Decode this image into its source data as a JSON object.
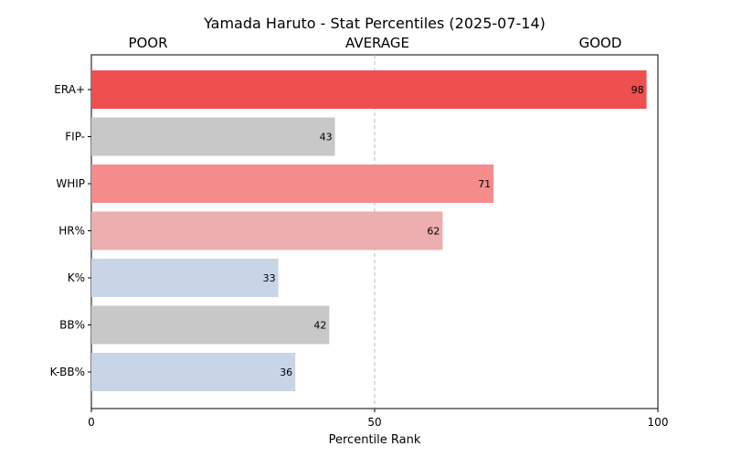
{
  "chart_data": {
    "type": "bar",
    "orientation": "horizontal",
    "title": "Yamada Haruto - Stat Percentiles (2025-07-14)",
    "band_labels": {
      "poor": "POOR",
      "average": "AVERAGE",
      "good": "GOOD"
    },
    "xlabel": "Percentile Rank",
    "ylabel": "",
    "xlim": [
      0,
      100
    ],
    "xticks": [
      0,
      50,
      100
    ],
    "reference_line": 50,
    "grid": false,
    "categories": [
      "ERA+",
      "FIP-",
      "WHIP",
      "HR%",
      "K%",
      "BB%",
      "K-BB%"
    ],
    "values": [
      98,
      43,
      71,
      62,
      33,
      42,
      36
    ],
    "colors": [
      "#ee4f4f",
      "#c8c8c8",
      "#f48c8c",
      "#ecaeae",
      "#c8d5e6",
      "#c8c8c8",
      "#c8d5e6"
    ]
  }
}
